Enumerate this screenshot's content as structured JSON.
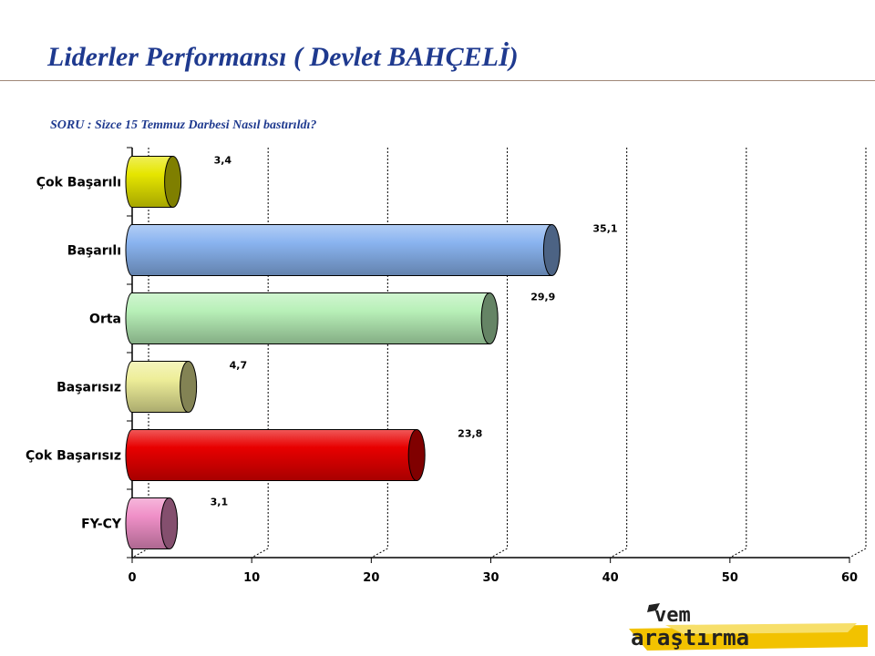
{
  "title": "Liderler Performansı ( Devlet BAHÇELİ)",
  "question": "SORU : Sizce 15 Temmuz Darbesi Nasıl bastırıldı?",
  "logo": {
    "top_text": "vem",
    "bottom_text": "araştırma"
  },
  "chart_data": {
    "type": "bar",
    "orientation": "horizontal",
    "style": "3d-cylinder",
    "categories": [
      "Çok Başarılı",
      "Başarılı",
      "Orta",
      "Başarısız",
      "Çok Başarısız",
      "FY-CY"
    ],
    "values": [
      3.4,
      35.1,
      29.9,
      4.7,
      23.8,
      3.1
    ],
    "value_labels": [
      "3,4",
      "35,1",
      "29,9",
      "4,7",
      "23,8",
      "3,1"
    ],
    "colors": [
      "#e6e600",
      "#8ab4f0",
      "#b8f0b8",
      "#eeee99",
      "#e80000",
      "#f090c8"
    ],
    "xlim": [
      0,
      60
    ],
    "xticks": [
      0,
      10,
      20,
      30,
      40,
      50,
      60
    ],
    "grid": true,
    "title": "",
    "xlabel": "",
    "ylabel": ""
  }
}
